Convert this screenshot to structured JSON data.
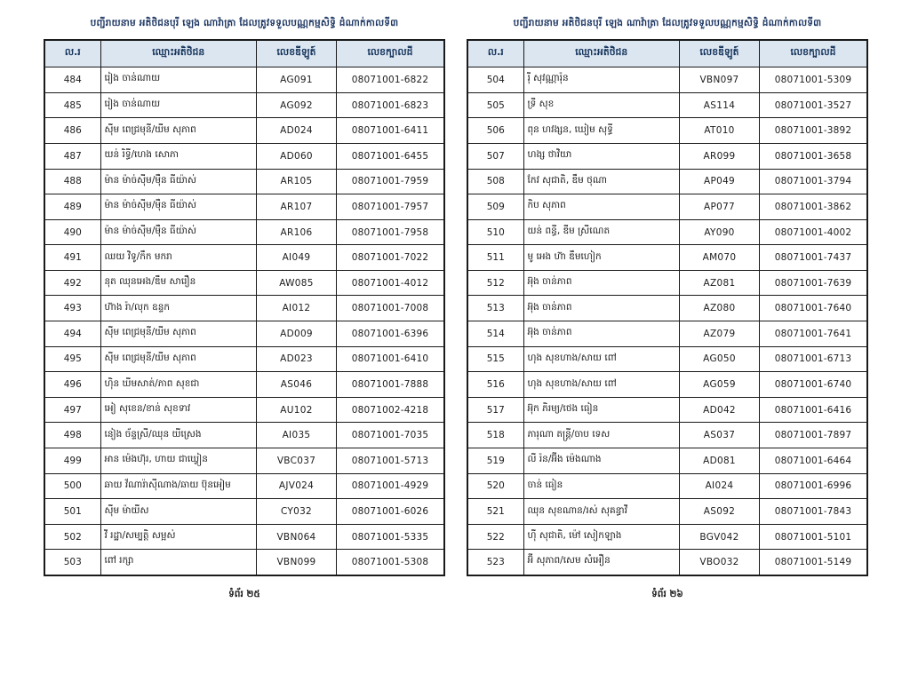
{
  "document": {
    "title": "បញ្ជីរាយនាម អតិថិជនបុរី ឡេង ណាវ៉ាត្រា ដែលត្រូវទទួលបណ្ណកម្មសិទ្ធិ ដំណាក់កាលទី៣",
    "columns": [
      "ល.រ",
      "ឈ្មោះអតិថិជន",
      "លេខឌីឡូត៍",
      "លេខក្បាលដី"
    ],
    "colors": {
      "title_text": "#1f3864",
      "header_bg": "#dce6f1",
      "header_text": "#17365d",
      "border": "#1a1a1a",
      "body_text": "#1c1c1c",
      "page_bg": "#ffffff"
    },
    "pages": [
      {
        "page_label": "ទំព័រ ២៥",
        "rows": [
          [
            "484",
            "រៀង ចាន់ណាយ",
            "AG091",
            "08071001-6822"
          ],
          [
            "485",
            "រៀង ចាន់ណាយ",
            "AG092",
            "08071001-6823"
          ],
          [
            "486",
            "ស៊ីម ពេជ្រមុនី/យីម សុភាព",
            "AD024",
            "08071001-6411"
          ],
          [
            "487",
            "យន់ រិទ្ធី/ហេង សោភា",
            "AD060",
            "08071001-6455"
          ],
          [
            "488",
            "ម៉ាន ម៉ាច់ស៊ីម/ម៉ឺន ធីយ៉ាស់",
            "AR105",
            "08071001-7959"
          ],
          [
            "489",
            "ម៉ាន ម៉ាច់ស៊ីម/ម៉ឺន ធីយ៉ាស់",
            "AR107",
            "08071001-7957"
          ],
          [
            "490",
            "ម៉ាន ម៉ាច់ស៊ីម/ម៉ឺន ធីយ៉ាស់",
            "AR106",
            "08071001-7958"
          ],
          [
            "491",
            "ឈយ វិទូ/កឹក មករា",
            "AI049",
            "08071001-7022"
          ],
          [
            "492",
            "នុត ឈុនអេង/ឌឹម សារឿន",
            "AW085",
            "08071001-4012"
          ],
          [
            "493",
            "ហ៊ាង រ៉ា/លុក ឧន្ទក",
            "AI012",
            "08071001-7008"
          ],
          [
            "494",
            "ស៊ីម ពេជ្រមុនី/យីម សុភាព",
            "AD009",
            "08071001-6396"
          ],
          [
            "495",
            "ស៊ីម ពេជ្រមុនី/យីម សុភាព",
            "AD023",
            "08071001-6410"
          ],
          [
            "496",
            "ហ៊ិន ឃីមសាត់/ភាព សុខជា",
            "AS046",
            "08071001-7888"
          ],
          [
            "497",
            "អៀ សុខេន/ខាន់ សុខទាវ",
            "AU102",
            "08071002-4218"
          ],
          [
            "498",
            "នៀង ច័ន្ទស្រី/ឈុន យីស្រេង",
            "AI035",
            "08071001-7035"
          ],
          [
            "499",
            "អាន ម៉េងហ៊ុរ, ហាយ ជាឃ្វៀន",
            "VBC037",
            "08071001-5713"
          ],
          [
            "500",
            "ឆាយ វ័ណារ៉ាស៊ីណាង/ឆាយ ប៊ុនអៀម",
            "AJV024",
            "08071001-4929"
          ],
          [
            "501",
            "ស៊ីម ម៉ាយីស",
            "CY032",
            "08071001-6026"
          ],
          [
            "502",
            "វី រដ្ឋា/សម្បត្តិ សម្អស់",
            "VBN064",
            "08071001-5335"
          ],
          [
            "503",
            "ពៅ រក្សា",
            "VBN099",
            "08071001-5308"
          ]
        ]
      },
      {
        "page_label": "ទំព័រ ២៦",
        "rows": [
          [
            "504",
            "រ៉ី សុវណ្ណារ៉ុន",
            "VBN097",
            "08071001-5309"
          ],
          [
            "505",
            "ទ្រី សុខ",
            "AS114",
            "08071001-3527"
          ],
          [
            "506",
            "ពុន ហវង្សន, ឃៀម សុទ្ធី",
            "AT010",
            "08071001-3892"
          ],
          [
            "507",
            "ហង្ស ថាវិយា",
            "AR099",
            "08071001-3658"
          ],
          [
            "508",
            "កែវ សុជាតិ, ឌឹម ថុណា",
            "AP049",
            "08071001-3794"
          ],
          [
            "509",
            "កិប សុភាព",
            "AP077",
            "08071001-3862"
          ],
          [
            "510",
            "យន់ ពន្ធី, ឌីម ស្រីណេត",
            "AY090",
            "08071001-4002"
          ],
          [
            "511",
            "មូ អេង ហ៊ា ឌឹមហៀក",
            "AM070",
            "08071001-7437"
          ],
          [
            "512",
            "អ៊ុង ចាន់ភាព",
            "AZ081",
            "08071001-7639"
          ],
          [
            "513",
            "អ៊ុង ចាន់ភាព",
            "AZ080",
            "08071001-7640"
          ],
          [
            "514",
            "អ៊ុង ចាន់ភាព",
            "AZ079",
            "08071001-7641"
          ],
          [
            "515",
            "ហុង សុខហាង/សាយ ពៅ",
            "AG050",
            "08071001-6713"
          ],
          [
            "516",
            "ហុង សុខហាង/សាយ ពៅ",
            "AG059",
            "08071001-6740"
          ],
          [
            "517",
            "អ៊ុក ភិរម្យ/ថេង ធៀន",
            "AD042",
            "08071001-6416"
          ],
          [
            "518",
            "ភារុណា តន្ត្រី/ចាប ទេស",
            "AS037",
            "08071001-7897"
          ],
          [
            "519",
            "លី រ៉ន/អ៊ីង ម៉េងណាង",
            "AD081",
            "08071001-6464"
          ],
          [
            "520",
            "ចាន់ ធៀន",
            "AI024",
            "08071001-6996"
          ],
          [
            "521",
            "ឈុន សុខណាន/រស់ សុគន្ធាវី",
            "AS092",
            "08071001-7843"
          ],
          [
            "522",
            "ហ៊ី សុជាតិ, ម៉ៅ សៀកឡាង",
            "BGV042",
            "08071001-5101"
          ],
          [
            "523",
            "អ៊ី សុភាព/សេម សំអឿន",
            "VBO032",
            "08071001-5149"
          ]
        ]
      }
    ]
  }
}
